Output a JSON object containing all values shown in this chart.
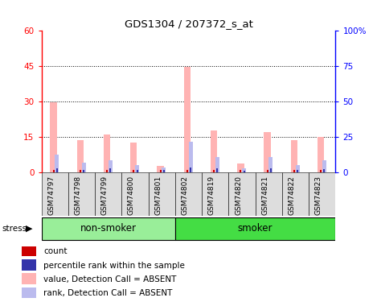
{
  "title": "GDS1304 / 207372_s_at",
  "samples": [
    "GSM74797",
    "GSM74798",
    "GSM74799",
    "GSM74800",
    "GSM74801",
    "GSM74802",
    "GSM74819",
    "GSM74820",
    "GSM74821",
    "GSM74822",
    "GSM74823"
  ],
  "pink_values": [
    29.5,
    13.5,
    16.0,
    12.5,
    2.5,
    44.5,
    17.5,
    3.5,
    17.0,
    13.5,
    15.0
  ],
  "blue_values": [
    7.5,
    4.0,
    5.0,
    3.0,
    2.0,
    13.0,
    6.5,
    1.5,
    6.5,
    3.0,
    5.0
  ],
  "red_values": [
    1.0,
    1.0,
    1.0,
    1.0,
    1.0,
    1.0,
    1.0,
    1.0,
    1.0,
    1.0,
    1.0
  ],
  "dark_blue_values": [
    1.5,
    1.0,
    1.5,
    0.8,
    0.8,
    2.0,
    1.5,
    0.5,
    1.5,
    0.8,
    1.2
  ],
  "ylim_left": [
    0,
    60
  ],
  "ylim_right": [
    0,
    100
  ],
  "yticks_left": [
    0,
    15,
    30,
    45,
    60
  ],
  "yticks_right": [
    0,
    25,
    50,
    75,
    100
  ],
  "yticklabels_left": [
    "0",
    "15",
    "30",
    "45",
    "60"
  ],
  "yticklabels_right": [
    "0",
    "25",
    "50",
    "75",
    "100%"
  ],
  "gridlines_at": [
    15,
    30,
    45
  ],
  "pink_color": "#FFB3B3",
  "blue_color": "#BBBBEE",
  "red_color": "#CC0000",
  "dark_blue_color": "#3333AA",
  "group_bg_nonsmoker": "#99EE99",
  "group_bg_smoker": "#44DD44",
  "tick_label_bg": "#DDDDDD",
  "legend_items": [
    "count",
    "percentile rank within the sample",
    "value, Detection Call = ABSENT",
    "rank, Detection Call = ABSENT"
  ],
  "legend_colors": [
    "#CC0000",
    "#3333AA",
    "#FFB3B3",
    "#BBBBEE"
  ],
  "n_nonsmoker": 5,
  "n_smoker": 6
}
